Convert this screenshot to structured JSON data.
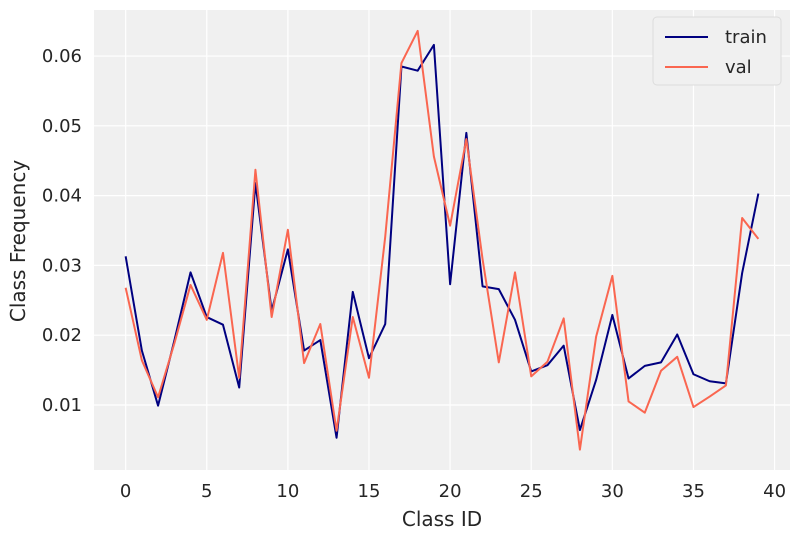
{
  "chart_data": {
    "type": "line",
    "title": "",
    "xlabel": "Class ID",
    "ylabel": "Class Frequency",
    "xlim": [
      -1.95,
      40.95
    ],
    "ylim": [
      0.00068,
      0.0666
    ],
    "xticks": [
      0,
      5,
      10,
      15,
      20,
      25,
      30,
      35,
      40
    ],
    "yticks": [
      0.01,
      0.02,
      0.03,
      0.04,
      0.05,
      0.06
    ],
    "ytick_labels": [
      "0.01",
      "0.02",
      "0.03",
      "0.04",
      "0.05",
      "0.06"
    ],
    "grid": true,
    "legend_position": "top-right",
    "x": [
      0,
      1,
      2,
      3,
      4,
      5,
      6,
      7,
      8,
      9,
      10,
      11,
      12,
      13,
      14,
      15,
      16,
      17,
      18,
      19,
      20,
      21,
      22,
      23,
      24,
      25,
      26,
      27,
      28,
      29,
      30,
      31,
      32,
      33,
      34,
      35,
      36,
      37,
      38,
      39
    ],
    "series": [
      {
        "name": "train",
        "color": "#000080",
        "values": [
          0.0313,
          0.0178,
          0.0099,
          0.0192,
          0.029,
          0.0226,
          0.0215,
          0.0125,
          0.0418,
          0.0235,
          0.0323,
          0.0178,
          0.0193,
          0.0053,
          0.0262,
          0.0167,
          0.0216,
          0.0585,
          0.0579,
          0.0616,
          0.0273,
          0.049,
          0.027,
          0.0266,
          0.0222,
          0.0148,
          0.0157,
          0.0185,
          0.0064,
          0.0136,
          0.0229,
          0.0138,
          0.0156,
          0.0161,
          0.0201,
          0.0144,
          0.0134,
          0.0131,
          0.0289,
          0.0403
        ]
      },
      {
        "name": "val",
        "color": "#fa6650",
        "values": [
          0.0268,
          0.0164,
          0.0111,
          0.0188,
          0.0272,
          0.0222,
          0.0318,
          0.0139,
          0.0437,
          0.0226,
          0.0351,
          0.016,
          0.0216,
          0.0063,
          0.0226,
          0.0139,
          0.0341,
          0.059,
          0.0636,
          0.0456,
          0.0357,
          0.0481,
          0.0309,
          0.0161,
          0.029,
          0.0141,
          0.0162,
          0.0224,
          0.0036,
          0.0198,
          0.0285,
          0.0105,
          0.0089,
          0.0149,
          0.0169,
          0.0097,
          0.0112,
          0.0128,
          0.0368,
          0.0338
        ]
      }
    ]
  }
}
